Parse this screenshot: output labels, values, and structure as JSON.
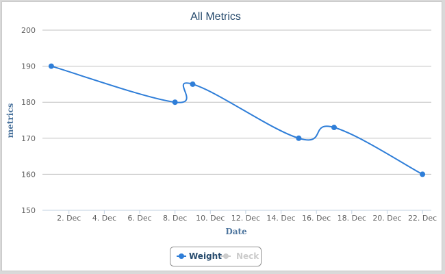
{
  "chart_data": {
    "type": "line",
    "title": "All Metrics",
    "xlabel": "Date",
    "ylabel": "metrics",
    "ylim": [
      150,
      200
    ],
    "yticks": [
      "150",
      "160",
      "170",
      "180",
      "190",
      "200"
    ],
    "xticks": [
      "2. Dec",
      "4. Dec",
      "6. Dec",
      "8. Dec",
      "10. Dec",
      "12. Dec",
      "14. Dec",
      "16. Dec",
      "18. Dec",
      "20. Dec",
      "22. Dec"
    ],
    "x_day_range": [
      0.5,
      22.5
    ],
    "grid": "horizontal",
    "legend_position": "bottom-center",
    "series": [
      {
        "name": "Weight",
        "color": "#2f7ed8",
        "visible": true,
        "points": [
          {
            "x": "1. Dec",
            "day": 1,
            "y": 190
          },
          {
            "x": "8. Dec",
            "day": 8,
            "y": 180
          },
          {
            "x": "9. Dec",
            "day": 9,
            "y": 185
          },
          {
            "x": "15. Dec",
            "day": 15,
            "y": 170
          },
          {
            "x": "17. Dec",
            "day": 17,
            "y": 173
          },
          {
            "x": "22. Dec",
            "day": 22,
            "y": 160
          }
        ]
      },
      {
        "name": "Neck",
        "color": "#cccccc",
        "visible": false,
        "points": []
      }
    ]
  }
}
